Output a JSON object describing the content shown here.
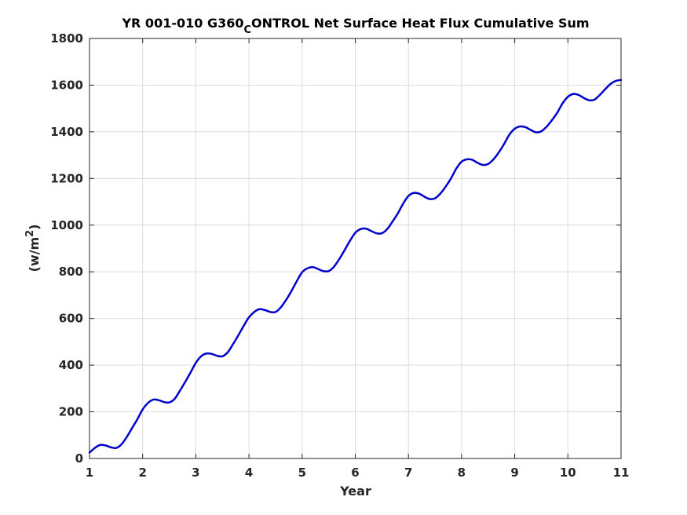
{
  "chart_data": {
    "type": "line",
    "title": "YR 001-010 G360_CONTROL Net Surface Heat Flux  Cumulative Sum",
    "title_parts": {
      "pre": "YR 001-010 G360",
      "sub": "C",
      "post": "ONTROL Net Surface Heat Flux  Cumulative Sum"
    },
    "xlabel": "Year",
    "ylabel_parts": {
      "pre": "(w/m",
      "sup": "2",
      "post": ")"
    },
    "xlim": [
      1,
      11
    ],
    "ylim": [
      0,
      1800
    ],
    "x_ticks": [
      "1",
      "2",
      "3",
      "4",
      "5",
      "6",
      "7",
      "8",
      "9",
      "10",
      "11"
    ],
    "y_ticks": [
      "0",
      "200",
      "400",
      "600",
      "800",
      "1000",
      "1200",
      "1400",
      "1600",
      "1800"
    ],
    "grid": true,
    "series": [
      {
        "color": "#0000cc",
        "x": [
          1.0,
          1.1,
          1.2,
          1.3,
          1.4,
          1.5,
          1.6,
          1.7,
          1.8,
          1.9,
          2.0,
          2.1,
          2.2,
          2.3,
          2.4,
          2.5,
          2.6,
          2.7,
          2.8,
          2.9,
          3.0,
          3.1,
          3.2,
          3.3,
          3.4,
          3.5,
          3.6,
          3.7,
          3.8,
          3.9,
          4.0,
          4.1,
          4.2,
          4.3,
          4.4,
          4.5,
          4.6,
          4.7,
          4.8,
          4.9,
          5.0,
          5.1,
          5.2,
          5.3,
          5.4,
          5.5,
          5.6,
          5.7,
          5.8,
          5.9,
          6.0,
          6.1,
          6.2,
          6.3,
          6.4,
          6.5,
          6.6,
          6.7,
          6.8,
          6.9,
          7.0,
          7.1,
          7.2,
          7.3,
          7.4,
          7.5,
          7.6,
          7.7,
          7.8,
          7.9,
          8.0,
          8.1,
          8.2,
          8.3,
          8.4,
          8.5,
          8.6,
          8.7,
          8.8,
          8.9,
          9.0,
          9.1,
          9.2,
          9.3,
          9.4,
          9.5,
          9.6,
          9.7,
          9.8,
          9.9,
          10.0,
          10.1,
          10.2,
          10.3,
          10.4,
          10.5,
          10.6,
          10.7,
          10.8,
          10.9,
          11.0
        ],
        "y": [
          25,
          45,
          58,
          56,
          48,
          45,
          60,
          92,
          130,
          168,
          210,
          238,
          252,
          250,
          242,
          240,
          255,
          290,
          328,
          368,
          410,
          438,
          450,
          448,
          440,
          438,
          455,
          490,
          528,
          568,
          605,
          628,
          640,
          636,
          628,
          628,
          648,
          680,
          718,
          760,
          798,
          815,
          820,
          812,
          803,
          803,
          822,
          855,
          893,
          933,
          967,
          983,
          985,
          975,
          965,
          965,
          983,
          1015,
          1050,
          1092,
          1125,
          1138,
          1135,
          1122,
          1112,
          1115,
          1135,
          1165,
          1200,
          1242,
          1272,
          1282,
          1280,
          1267,
          1258,
          1262,
          1282,
          1312,
          1348,
          1388,
          1413,
          1423,
          1420,
          1408,
          1398,
          1402,
          1422,
          1450,
          1482,
          1522,
          1550,
          1562,
          1558,
          1545,
          1535,
          1538,
          1558,
          1582,
          1605,
          1618,
          1622
        ]
      }
    ]
  }
}
